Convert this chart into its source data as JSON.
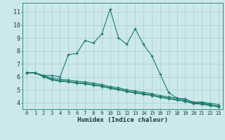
{
  "bg_color": "#cce8ea",
  "grid_color": "#aacfd2",
  "line_color": "#1a7a6e",
  "xlabel": "Humidex (Indice chaleur)",
  "xlim": [
    -0.5,
    23.5
  ],
  "ylim": [
    3.5,
    11.7
  ],
  "yticks": [
    4,
    5,
    6,
    7,
    8,
    9,
    10,
    11
  ],
  "xticks": [
    0,
    1,
    2,
    3,
    4,
    5,
    6,
    7,
    8,
    9,
    10,
    11,
    12,
    13,
    14,
    15,
    16,
    17,
    18,
    19,
    20,
    21,
    22,
    23
  ],
  "xtick_labels": [
    "0",
    "1",
    "2",
    "3",
    "4",
    "5",
    "6",
    "7",
    "8",
    "9",
    "10",
    "11",
    "12",
    "13",
    "14",
    "15",
    "16",
    "17",
    "18",
    "19",
    "20",
    "21",
    "22",
    "23"
  ],
  "line1_x": [
    0,
    1,
    2,
    3,
    4,
    5,
    6,
    7,
    8,
    9,
    10,
    11,
    12,
    13,
    14,
    15,
    16,
    17,
    18,
    19,
    20,
    21,
    22,
    23
  ],
  "line1_y": [
    6.3,
    6.3,
    6.1,
    6.1,
    6.0,
    7.7,
    7.8,
    8.8,
    8.6,
    9.3,
    11.2,
    9.0,
    8.5,
    9.7,
    8.5,
    7.6,
    6.2,
    4.8,
    4.35,
    4.3,
    4.0,
    4.0,
    3.85,
    3.7
  ],
  "line2_x": [
    0,
    1,
    2,
    3,
    4,
    5,
    6,
    7,
    8,
    9,
    10,
    11,
    12,
    13,
    14,
    15,
    16,
    17,
    18,
    19,
    20,
    21,
    22,
    23
  ],
  "line2_y": [
    6.3,
    6.3,
    6.1,
    5.9,
    5.8,
    5.75,
    5.65,
    5.6,
    5.5,
    5.4,
    5.25,
    5.15,
    5.0,
    4.9,
    4.8,
    4.7,
    4.55,
    4.45,
    4.35,
    4.25,
    4.05,
    4.05,
    3.95,
    3.85
  ],
  "line3_x": [
    0,
    1,
    2,
    3,
    4,
    5,
    6,
    7,
    8,
    9,
    10,
    11,
    12,
    13,
    14,
    15,
    16,
    17,
    18,
    19,
    20,
    21,
    22,
    23
  ],
  "line3_y": [
    6.3,
    6.3,
    6.05,
    5.8,
    5.7,
    5.65,
    5.55,
    5.5,
    5.4,
    5.3,
    5.15,
    5.05,
    4.9,
    4.8,
    4.7,
    4.6,
    4.45,
    4.35,
    4.25,
    4.15,
    3.97,
    3.93,
    3.83,
    3.73
  ],
  "line4_x": [
    0,
    1,
    2,
    3,
    4,
    5,
    6,
    7,
    8,
    9,
    10,
    11,
    12,
    13,
    14,
    15,
    16,
    17,
    18,
    19,
    20,
    21,
    22,
    23
  ],
  "line4_y": [
    6.3,
    6.3,
    6.0,
    5.75,
    5.65,
    5.6,
    5.5,
    5.45,
    5.35,
    5.25,
    5.1,
    5.0,
    4.85,
    4.75,
    4.65,
    4.55,
    4.4,
    4.3,
    4.2,
    4.1,
    3.93,
    3.88,
    3.78,
    3.68
  ],
  "tick_fontsize": 5.0,
  "xlabel_fontsize": 6.5
}
